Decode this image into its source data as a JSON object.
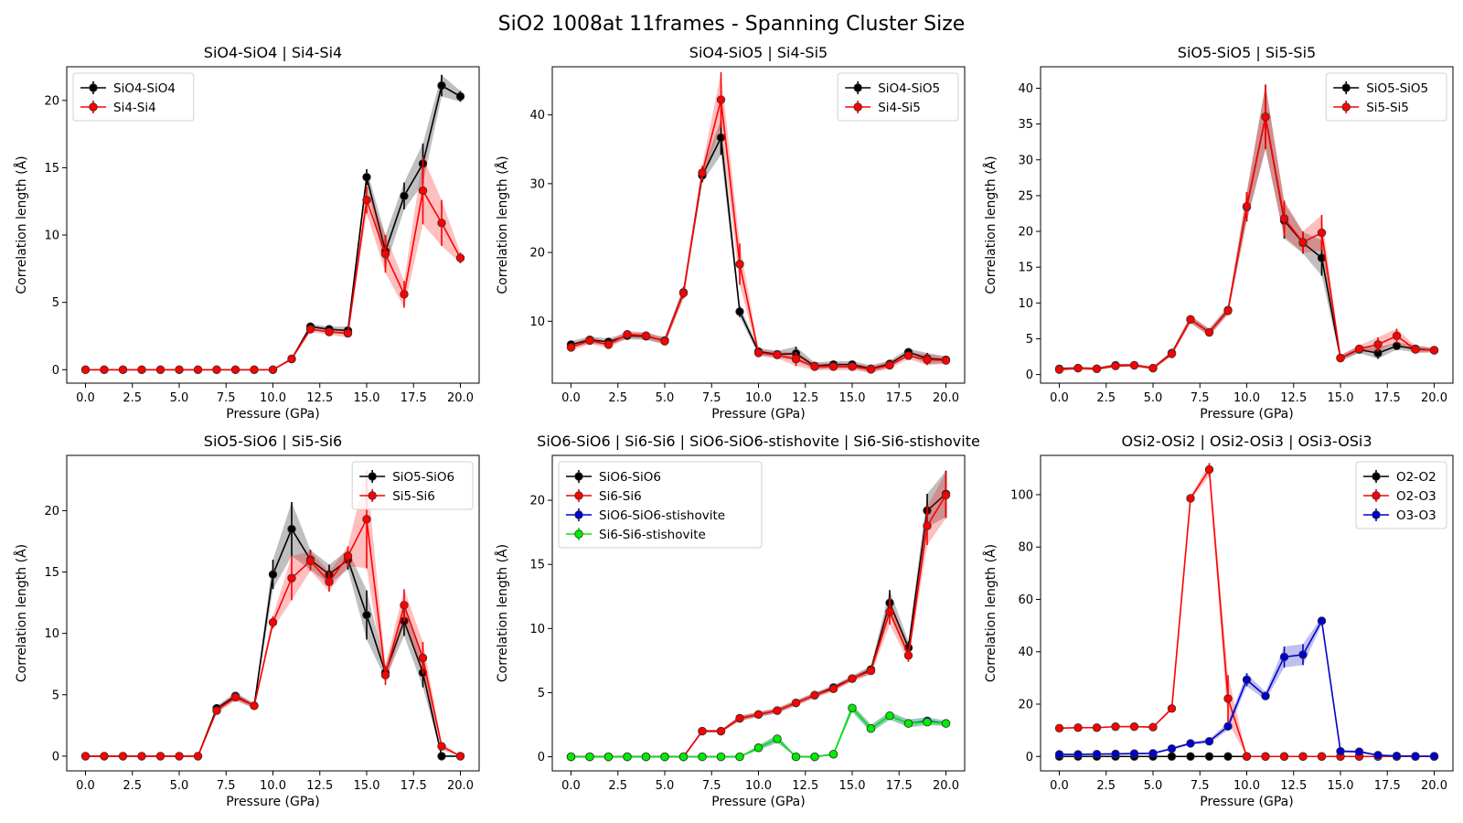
{
  "figure": {
    "title": "SiO2 1008at 11frames - Spanning Cluster Size"
  },
  "chart_data": [
    {
      "type": "line",
      "title": "SiO4-SiO4 | Si4-Si4",
      "xlabel": "Pressure (GPa)",
      "ylabel": "Correlation length (Å)",
      "xlim": [
        -1,
        21
      ],
      "ylim": [
        -1,
        22.5
      ],
      "xticks": [
        "0.0",
        "2.5",
        "5.0",
        "7.5",
        "10.0",
        "12.5",
        "15.0",
        "17.5",
        "20.0"
      ],
      "yticks": [
        "0",
        "5",
        "10",
        "15",
        "20"
      ],
      "legend_position": "top-left",
      "x": [
        0,
        1,
        2,
        3,
        4,
        5,
        6,
        7,
        8,
        9,
        10,
        11,
        12,
        13,
        14,
        15,
        16,
        17,
        18,
        19,
        20
      ],
      "series": [
        {
          "name": "SiO4-SiO4",
          "color": "#000000",
          "values": [
            0,
            0,
            0,
            0,
            0,
            0,
            0,
            0,
            0,
            0,
            0,
            0.8,
            3.2,
            3.0,
            2.9,
            14.3,
            8.8,
            12.9,
            15.3,
            21.1,
            20.3
          ],
          "err": [
            0,
            0,
            0,
            0,
            0,
            0,
            0,
            0,
            0,
            0,
            0,
            0.1,
            0.2,
            0.2,
            0.3,
            0.6,
            1.2,
            1.0,
            1.5,
            0.8,
            0.4
          ]
        },
        {
          "name": "Si4-Si4",
          "color": "#ff0000",
          "values": [
            0,
            0,
            0,
            0,
            0,
            0,
            0,
            0,
            0,
            0,
            0,
            0.8,
            3.0,
            2.8,
            2.7,
            12.6,
            8.6,
            5.6,
            13.3,
            10.9,
            8.3
          ],
          "err": [
            0,
            0,
            0,
            0,
            0,
            0,
            0,
            0,
            0,
            0,
            0,
            0.1,
            0.2,
            0.2,
            0.3,
            1.0,
            1.4,
            1.0,
            2.5,
            1.7,
            0.4
          ]
        }
      ]
    },
    {
      "type": "line",
      "title": "SiO4-SiO5 | Si4-Si5",
      "xlabel": "Pressure (GPa)",
      "ylabel": "Correlation length (Å)",
      "xlim": [
        -1,
        21
      ],
      "ylim": [
        1,
        47
      ],
      "xticks": [
        "0.0",
        "2.5",
        "5.0",
        "7.5",
        "10.0",
        "12.5",
        "15.0",
        "17.5",
        "20.0"
      ],
      "yticks": [
        "10",
        "20",
        "30",
        "40"
      ],
      "legend_position": "top-right",
      "x": [
        0,
        1,
        2,
        3,
        4,
        5,
        6,
        7,
        8,
        9,
        10,
        11,
        12,
        13,
        14,
        15,
        16,
        17,
        18,
        19,
        20
      ],
      "series": [
        {
          "name": "SiO4-SiO5",
          "color": "#000000",
          "values": [
            6.6,
            7.3,
            7.0,
            7.9,
            7.8,
            7.2,
            14.2,
            31.2,
            36.7,
            11.4,
            5.6,
            5.2,
            5.3,
            3.5,
            3.7,
            3.7,
            3.1,
            3.8,
            5.5,
            4.6,
            4.4
          ],
          "err": [
            0.5,
            0.5,
            0.5,
            0.5,
            0.5,
            0.5,
            0.8,
            1.0,
            2.5,
            0.8,
            0.5,
            0.5,
            1.0,
            0.5,
            0.5,
            0.5,
            0.5,
            0.5,
            0.5,
            0.8,
            0.5
          ]
        },
        {
          "name": "Si4-Si5",
          "color": "#ff0000",
          "values": [
            6.2,
            7.2,
            6.6,
            8.1,
            7.9,
            7.1,
            14.1,
            31.6,
            42.2,
            18.3,
            5.4,
            5.1,
            4.5,
            3.4,
            3.4,
            3.4,
            3.0,
            3.6,
            5.0,
            4.4,
            4.3
          ],
          "err": [
            0.5,
            0.5,
            0.5,
            0.5,
            0.5,
            0.5,
            0.8,
            1.0,
            4.0,
            3.0,
            0.5,
            0.5,
            1.0,
            0.5,
            0.5,
            0.5,
            0.5,
            0.5,
            0.5,
            0.8,
            0.5
          ]
        }
      ]
    },
    {
      "type": "line",
      "title": "SiO5-SiO5 | Si5-Si5",
      "xlabel": "Pressure (GPa)",
      "ylabel": "Correlation length (Å)",
      "xlim": [
        -1,
        21
      ],
      "ylim": [
        -1.2,
        43
      ],
      "xticks": [
        "0.0",
        "2.5",
        "5.0",
        "7.5",
        "10.0",
        "12.5",
        "15.0",
        "17.5",
        "20.0"
      ],
      "yticks": [
        "0",
        "5",
        "10",
        "15",
        "20",
        "25",
        "30",
        "35",
        "40"
      ],
      "legend_position": "top-right",
      "x": [
        0,
        1,
        2,
        3,
        4,
        5,
        6,
        7,
        8,
        9,
        10,
        11,
        12,
        13,
        14,
        15,
        16,
        17,
        18,
        19,
        20
      ],
      "series": [
        {
          "name": "SiO5-SiO5",
          "color": "#000000",
          "values": [
            0.8,
            0.9,
            0.8,
            1.3,
            1.3,
            0.9,
            3.0,
            7.7,
            5.9,
            9.0,
            23.4,
            36.0,
            21.5,
            18.4,
            16.3,
            2.3,
            3.5,
            3.0,
            4.0,
            3.6,
            3.4
          ],
          "err": [
            0.2,
            0.2,
            0.2,
            0.2,
            0.2,
            0.2,
            0.3,
            0.5,
            0.5,
            0.5,
            2.0,
            4.5,
            2.5,
            1.5,
            2.5,
            0.4,
            0.5,
            0.8,
            0.5,
            0.5,
            0.3
          ]
        },
        {
          "name": "Si5-Si5",
          "color": "#ff0000",
          "values": [
            0.7,
            0.9,
            0.8,
            1.2,
            1.3,
            0.9,
            2.9,
            7.7,
            5.9,
            8.9,
            23.5,
            36.0,
            21.8,
            18.5,
            19.8,
            2.3,
            3.6,
            4.2,
            5.4,
            3.5,
            3.4
          ],
          "err": [
            0.2,
            0.2,
            0.2,
            0.2,
            0.2,
            0.2,
            0.3,
            0.5,
            0.5,
            0.5,
            2.0,
            4.5,
            2.5,
            1.5,
            2.5,
            0.4,
            0.5,
            1.0,
            1.0,
            0.5,
            0.3
          ]
        }
      ]
    },
    {
      "type": "line",
      "title": "SiO5-SiO6 | Si5-Si6",
      "xlabel": "Pressure (GPa)",
      "ylabel": "Correlation length (Å)",
      "xlim": [
        -1,
        21
      ],
      "ylim": [
        -1.2,
        24.5
      ],
      "xticks": [
        "0.0",
        "2.5",
        "5.0",
        "7.5",
        "10.0",
        "12.5",
        "15.0",
        "17.5",
        "20.0"
      ],
      "yticks": [
        "0",
        "5",
        "10",
        "15",
        "20"
      ],
      "legend_position": "top-right",
      "x": [
        0,
        1,
        2,
        3,
        4,
        5,
        6,
        7,
        8,
        9,
        10,
        11,
        12,
        13,
        14,
        15,
        16,
        17,
        18,
        19,
        20
      ],
      "series": [
        {
          "name": "SiO5-SiO6",
          "color": "#000000",
          "values": [
            0,
            0,
            0,
            0,
            0,
            0,
            0,
            3.9,
            4.9,
            4.1,
            14.8,
            18.5,
            16.0,
            14.8,
            16.0,
            11.5,
            6.8,
            11.0,
            6.8,
            0,
            0
          ],
          "err": [
            0,
            0,
            0,
            0,
            0,
            0,
            0,
            0.2,
            0.3,
            0.2,
            1.2,
            2.2,
            0.8,
            0.8,
            0.8,
            2.0,
            0.5,
            1.2,
            1.2,
            0,
            0
          ]
        },
        {
          "name": "Si5-Si6",
          "color": "#ff0000",
          "values": [
            0,
            0,
            0,
            0,
            0,
            0,
            0,
            3.7,
            4.8,
            4.1,
            10.9,
            14.5,
            15.9,
            14.2,
            16.3,
            19.3,
            6.6,
            12.3,
            8.0,
            0.8,
            0
          ],
          "err": [
            0,
            0,
            0,
            0,
            0,
            0,
            0,
            0.2,
            0.3,
            0.2,
            0.5,
            1.8,
            0.8,
            0.8,
            0.8,
            4.0,
            0.8,
            1.3,
            1.3,
            0.3,
            0
          ]
        }
      ]
    },
    {
      "type": "line",
      "title": "SiO6-SiO6 | Si6-Si6 | SiO6-SiO6-stishovite | Si6-Si6-stishovite",
      "xlabel": "Pressure (GPa)",
      "ylabel": "Correlation length (Å)",
      "xlim": [
        -1,
        21
      ],
      "ylim": [
        -1.1,
        23.5
      ],
      "xticks": [
        "0.0",
        "2.5",
        "5.0",
        "7.5",
        "10.0",
        "12.5",
        "15.0",
        "17.5",
        "20.0"
      ],
      "yticks": [
        "0",
        "5",
        "10",
        "15",
        "20"
      ],
      "legend_position": "top-left",
      "x": [
        0,
        1,
        2,
        3,
        4,
        5,
        6,
        7,
        8,
        9,
        10,
        11,
        12,
        13,
        14,
        15,
        16,
        17,
        18,
        19,
        20
      ],
      "series": [
        {
          "name": "SiO6-SiO6",
          "color": "#000000",
          "values": [
            0,
            0,
            0,
            0,
            0,
            0,
            0,
            2.0,
            2.0,
            3.0,
            3.3,
            3.6,
            4.2,
            4.8,
            5.4,
            6.1,
            6.8,
            12.0,
            8.5,
            19.2,
            20.5
          ],
          "err": [
            0,
            0,
            0,
            0,
            0,
            0,
            0,
            0.1,
            0.1,
            0.2,
            0.2,
            0.2,
            0.2,
            0.2,
            0.2,
            0.2,
            0.3,
            1.0,
            0.5,
            1.3,
            1.8
          ]
        },
        {
          "name": "Si6-Si6",
          "color": "#ff0000",
          "values": [
            0,
            0,
            0,
            0,
            0,
            0,
            0,
            2.0,
            2.0,
            3.0,
            3.3,
            3.6,
            4.2,
            4.8,
            5.3,
            6.1,
            6.7,
            11.3,
            7.9,
            18.0,
            20.4
          ],
          "err": [
            0,
            0,
            0,
            0,
            0,
            0,
            0,
            0.1,
            0.1,
            0.2,
            0.2,
            0.2,
            0.2,
            0.2,
            0.2,
            0.2,
            0.3,
            1.0,
            0.5,
            1.5,
            1.8
          ]
        },
        {
          "name": "SiO6-SiO6-stishovite",
          "color": "#0000cc",
          "values": [
            0,
            0,
            0,
            0,
            0,
            0,
            0,
            0,
            0,
            0,
            0.7,
            1.4,
            0,
            0,
            0.2,
            3.8,
            2.2,
            3.2,
            2.6,
            2.8,
            2.6
          ],
          "err": [
            0,
            0,
            0,
            0,
            0,
            0,
            0,
            0,
            0,
            0,
            0.2,
            0.3,
            0,
            0,
            0.1,
            0.3,
            0.3,
            0.3,
            0.3,
            0.3,
            0.2
          ]
        },
        {
          "name": "Si6-Si6-stishovite",
          "color": "#00ee00",
          "values": [
            0,
            0,
            0,
            0,
            0,
            0,
            0,
            0,
            0,
            0,
            0.7,
            1.4,
            0,
            0,
            0.2,
            3.8,
            2.2,
            3.2,
            2.6,
            2.7,
            2.6
          ],
          "err": [
            0,
            0,
            0,
            0,
            0,
            0,
            0,
            0,
            0,
            0,
            0.2,
            0.3,
            0,
            0,
            0.1,
            0.3,
            0.3,
            0.3,
            0.3,
            0.3,
            0.2
          ]
        }
      ]
    },
    {
      "type": "line",
      "title": "OSi2-OSi2 | OSi2-OSi3 | OSi3-OSi3",
      "xlabel": "Pressure (GPa)",
      "ylabel": "Correlation length (Å)",
      "xlim": [
        -1,
        21
      ],
      "ylim": [
        -5.5,
        115
      ],
      "xticks": [
        "0.0",
        "2.5",
        "5.0",
        "7.5",
        "10.0",
        "12.5",
        "15.0",
        "17.5",
        "20.0"
      ],
      "yticks": [
        "0",
        "20",
        "40",
        "60",
        "80",
        "100"
      ],
      "legend_position": "top-right",
      "x": [
        0,
        1,
        2,
        3,
        4,
        5,
        6,
        7,
        8,
        9,
        10,
        11,
        12,
        13,
        14,
        15,
        16,
        17,
        18,
        19,
        20
      ],
      "series": [
        {
          "name": "O2-O2",
          "color": "#000000",
          "values": [
            0,
            0,
            0,
            0,
            0,
            0,
            0,
            0,
            0,
            0,
            0,
            0,
            0,
            0,
            0,
            0,
            0,
            0,
            0,
            0,
            0
          ],
          "err": [
            0,
            0,
            0,
            0,
            0,
            0,
            0,
            0,
            0,
            0,
            0,
            0,
            0,
            0,
            0,
            0,
            0,
            0,
            0,
            0,
            0
          ]
        },
        {
          "name": "O2-O3",
          "color": "#ff0000",
          "values": [
            10.8,
            11.0,
            11.0,
            11.4,
            11.4,
            11.2,
            18.3,
            98.6,
            109.6,
            22.1,
            0,
            0,
            0,
            0,
            0,
            0,
            0,
            0,
            0,
            0,
            0
          ],
          "err": [
            0.3,
            0.3,
            0.3,
            0.3,
            0.3,
            0.3,
            0.6,
            0.8,
            2.5,
            9.0,
            0,
            0,
            0,
            0,
            0,
            0,
            0,
            0,
            0,
            0,
            0
          ]
        },
        {
          "name": "O3-O3",
          "color": "#0000cc",
          "values": [
            0.8,
            0.8,
            0.9,
            1.0,
            1.1,
            1.2,
            3.0,
            5.0,
            5.8,
            11.5,
            29.3,
            23.1,
            38.0,
            38.9,
            51.8,
            2.0,
            1.8,
            0.5,
            0.2,
            0.1,
            0.1
          ],
          "err": [
            0.3,
            0.3,
            0.3,
            0.3,
            0.3,
            0.3,
            0.5,
            0.5,
            0.8,
            1.5,
            2.5,
            1.5,
            4.0,
            4.0,
            1.5,
            0.5,
            0.5,
            0.3,
            0.2,
            0.1,
            0.1
          ]
        }
      ]
    }
  ]
}
